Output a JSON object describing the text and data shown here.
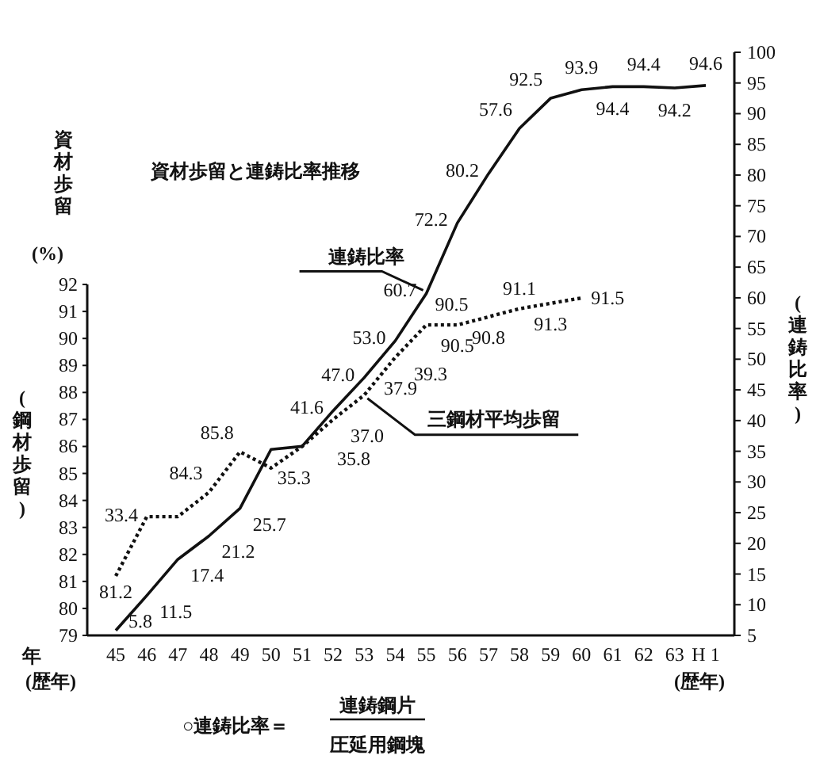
{
  "chart_data": {
    "type": "line",
    "title": "資材歩留と連鋳比率推移",
    "ylabel": "(鋼材歩留)",
    "y2label": "(連鋳比率)",
    "categories": [
      "45",
      "46",
      "47",
      "48",
      "49",
      "50",
      "51",
      "52",
      "53",
      "54",
      "55",
      "56",
      "57",
      "58",
      "59",
      "60",
      "61",
      "62",
      "63",
      "H 1"
    ],
    "series": [
      {
        "name": "三鋼材平均歩留",
        "color": "#111111",
        "line_style": "dotted",
        "values": [
          81.2,
          83.4,
          83.4,
          84.3,
          85.8,
          85.2,
          86.0,
          87.0,
          87.9,
          89.3,
          90.5,
          90.5,
          90.8,
          91.1,
          91.3,
          91.5,
          null,
          null,
          null,
          null
        ],
        "value_labels": [
          "81.2",
          null,
          null,
          "84.3",
          "85.8",
          null,
          null,
          null,
          null,
          null,
          "90.5",
          "90.5",
          "90.8",
          "91.1",
          "91.3",
          "91.5",
          null,
          null,
          null,
          null
        ]
      },
      {
        "name": "連鋳比率",
        "color": "#111111",
        "line_style": "solid",
        "axis": "y2",
        "values": [
          5.8,
          11.5,
          17.4,
          21.2,
          25.7,
          35.3,
          35.8,
          41.6,
          47.0,
          53.0,
          60.7,
          72.2,
          80.2,
          87.6,
          92.5,
          93.9,
          94.4,
          94.4,
          94.2,
          94.6
        ],
        "value_labels": [
          "5.8",
          "11.5",
          "17.4",
          "21.2",
          "25.7",
          "35.3",
          "35.8",
          "41.6",
          "47.0",
          "53.0",
          "60.7",
          "72.2",
          "80.2",
          null,
          "92.5",
          "93.9",
          "94.4",
          "94.4",
          "94.2",
          "94.6"
        ]
      }
    ],
    "ylim": [
      79,
      100.6
    ],
    "yticks": [
      79,
      80,
      81,
      82,
      83,
      84,
      85,
      86,
      87,
      88,
      89,
      90,
      91,
      92
    ],
    "y2lim": [
      5,
      100
    ],
    "y2ticks": [
      5,
      10,
      15,
      20,
      25,
      30,
      35,
      40,
      45,
      50,
      55,
      60,
      65,
      70,
      75,
      80,
      85,
      90,
      95,
      100
    ],
    "grid": false,
    "legend": false,
    "marker": "none",
    "annotations": [
      "資材歩留",
      "(%)",
      "年",
      "(歴年)",
      "(歴年)",
      "○連鋳比率＝",
      "連鋳鋼片",
      "圧延用鋼塊",
      "33.4",
      "37.0",
      "37.9",
      "39.3",
      "57.6"
    ]
  }
}
